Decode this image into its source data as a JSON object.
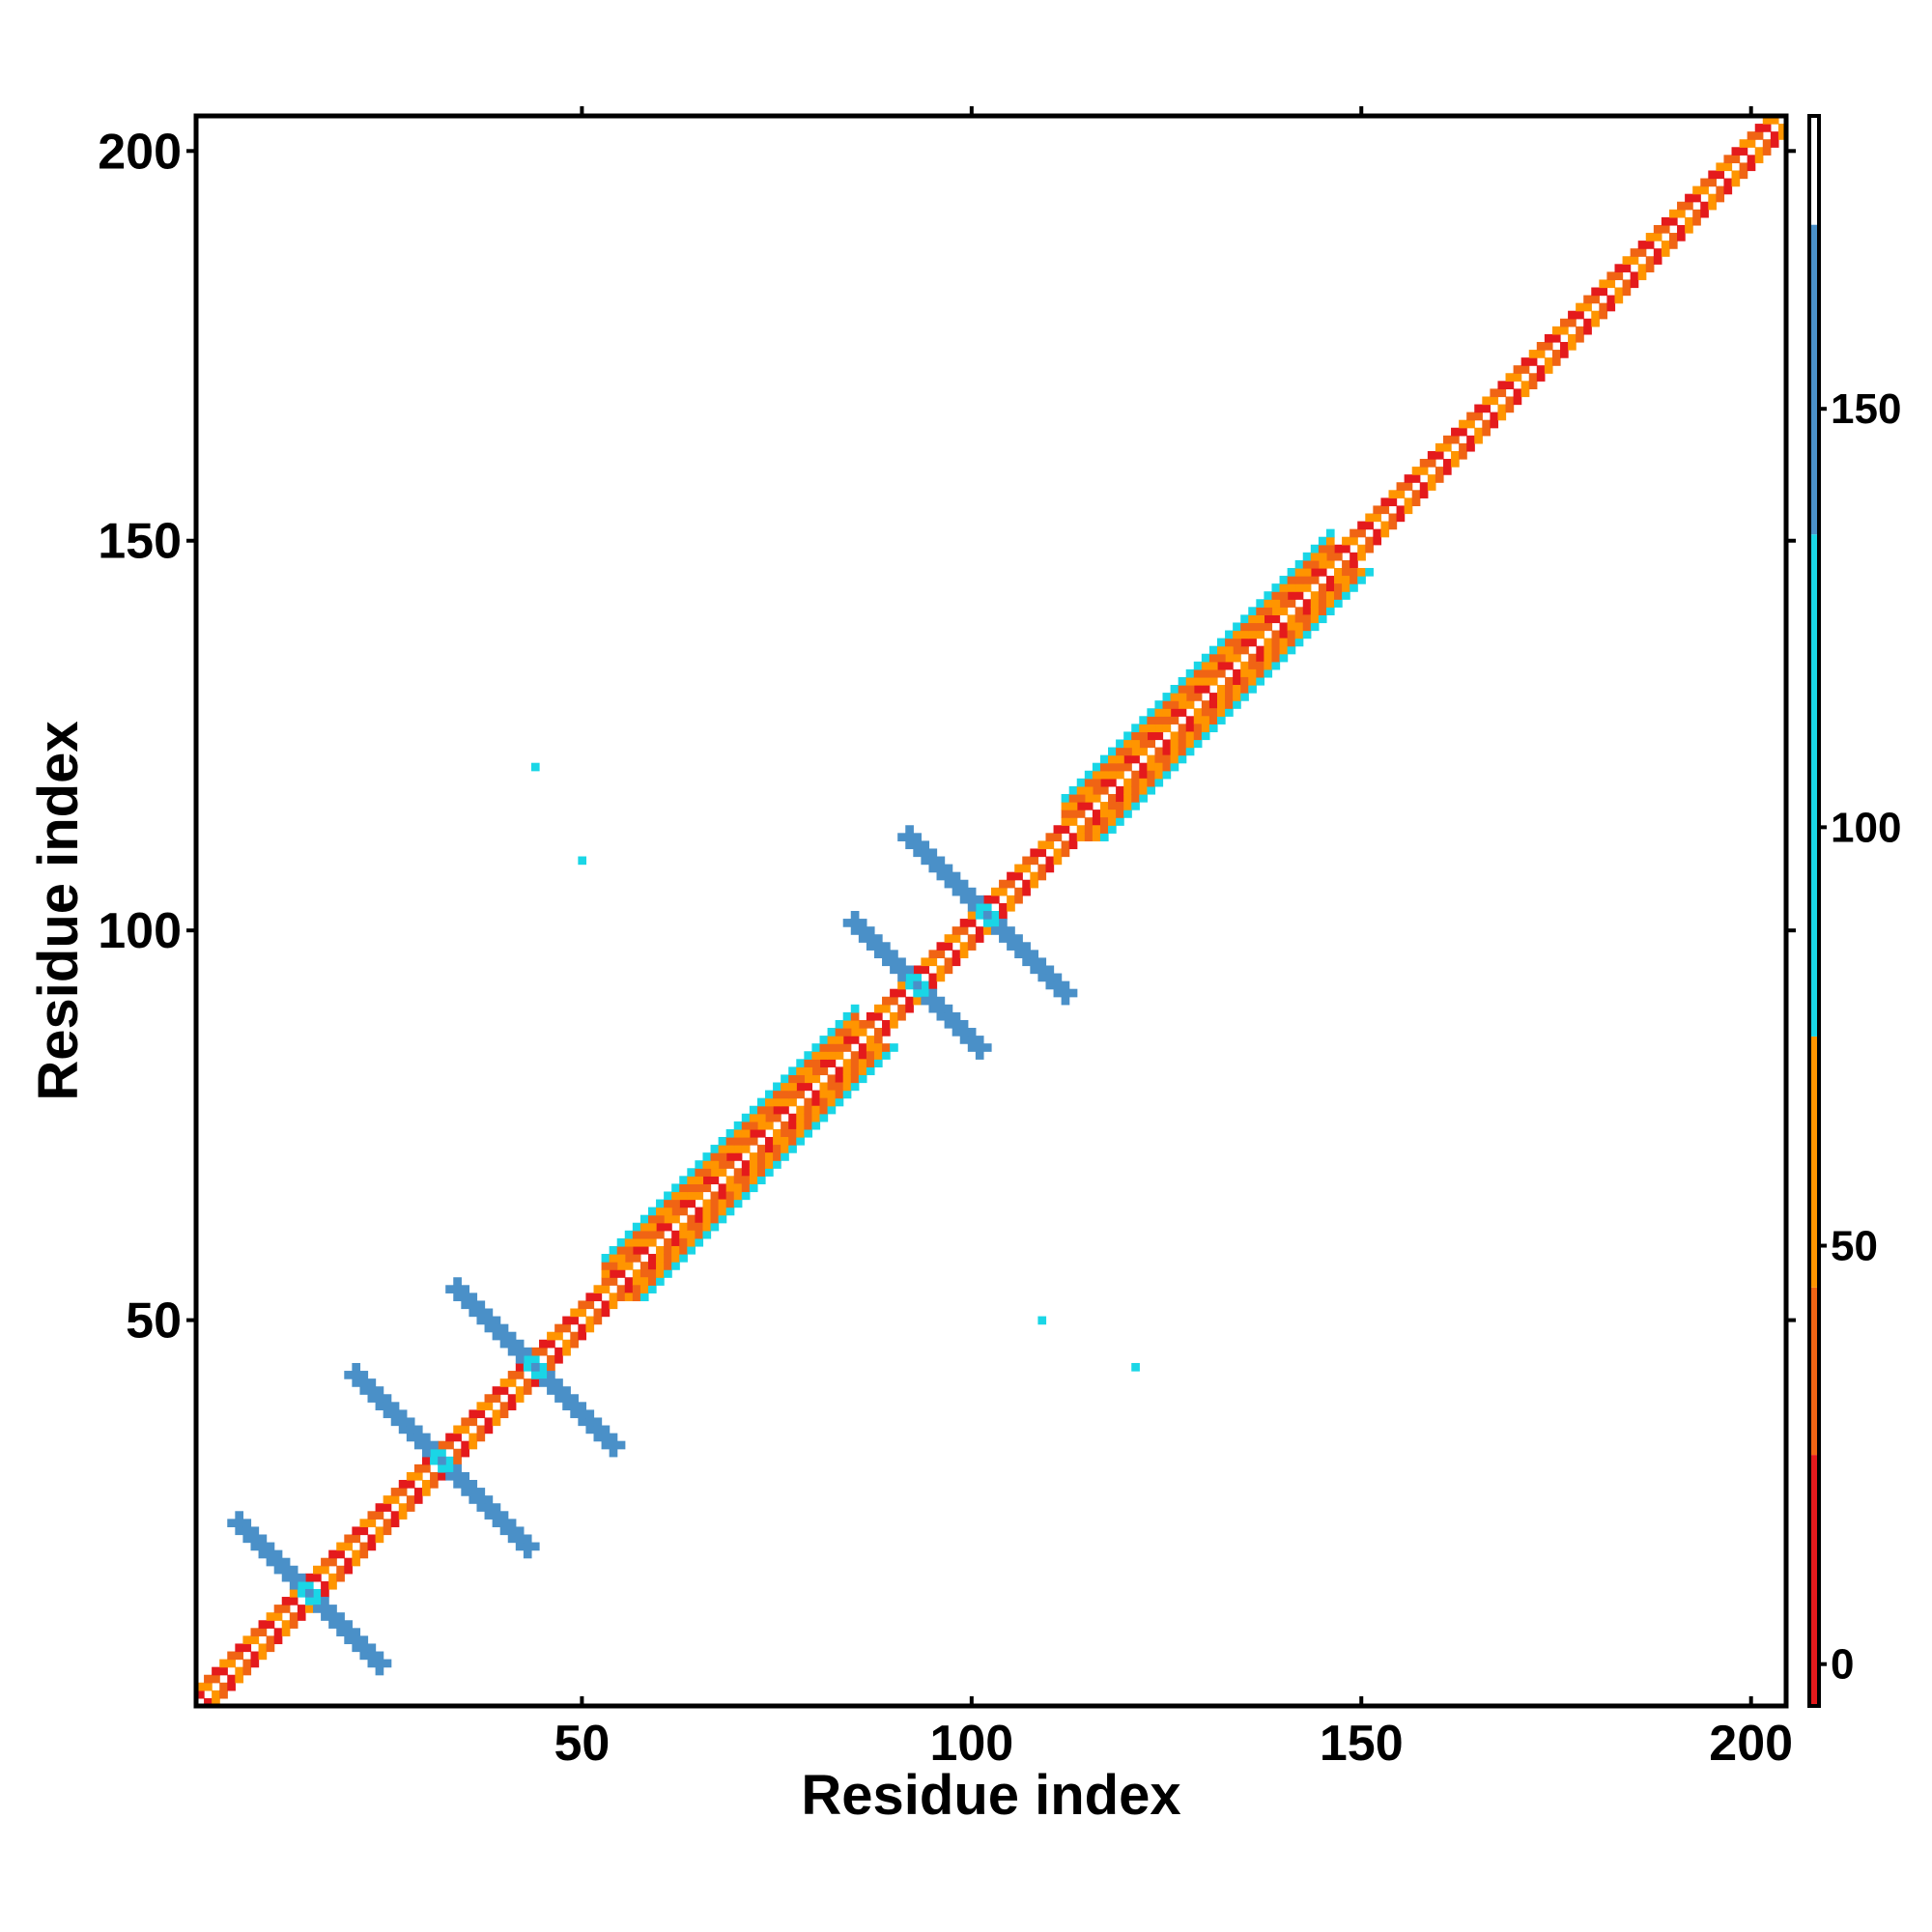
{
  "chart_data": {
    "type": "heatmap",
    "title": "",
    "xlabel": "Residue index",
    "ylabel": "Residue index",
    "xlim": [
      1,
      204
    ],
    "ylim": [
      1,
      204
    ],
    "x_ticks": [
      50,
      100,
      150,
      200
    ],
    "y_ticks": [
      50,
      100,
      150,
      200
    ],
    "x_tick_labels": [
      "50",
      "100",
      "150",
      "200"
    ],
    "y_tick_labels": [
      "50",
      "100",
      "150",
      "200"
    ],
    "colorbar": {
      "range": [
        -5,
        185
      ],
      "ticks": [
        0,
        50,
        100,
        150
      ],
      "tick_labels": [
        "0",
        "50",
        "100",
        "150"
      ],
      "bands": [
        {
          "from": -5,
          "to": 25,
          "color": "#e41a1c"
        },
        {
          "from": 25,
          "to": 45,
          "color": "#f06414"
        },
        {
          "from": 45,
          "to": 75,
          "color": "#ff9500"
        },
        {
          "from": 75,
          "to": 135,
          "color": "#1ad6e6"
        },
        {
          "from": 135,
          "to": 172,
          "color": "#4a90c8"
        },
        {
          "from": 172,
          "to": 185,
          "color": "#ffffff"
        }
      ]
    },
    "features": {
      "diagonal_band_value": 10,
      "crossings": [
        {
          "name": "cross-1",
          "center": [
            15,
            15
          ],
          "half_length": 9,
          "value": 150,
          "center_value": 100
        },
        {
          "name": "cross-2",
          "center": [
            32,
            32
          ],
          "half_length": 11,
          "value": 150,
          "center_value": 100
        },
        {
          "name": "cross-3",
          "center": [
            44,
            44
          ],
          "half_length": 10,
          "value": 150,
          "center_value": 100
        },
        {
          "name": "cross-4",
          "center": [
            93,
            93
          ],
          "half_length": 8,
          "value": 150,
          "center_value": 100
        },
        {
          "name": "cross-5",
          "center": [
            102,
            102
          ],
          "half_length": 10,
          "value": 150,
          "center_value": 100
        }
      ],
      "helix_blocks": [
        {
          "from": 53,
          "to": 67,
          "value": 100
        },
        {
          "from": 66,
          "to": 85,
          "value": 100
        },
        {
          "from": 112,
          "to": 146,
          "value": 100
        }
      ],
      "isolated_contacts": [
        {
          "x": 44,
          "y": 121,
          "value": 110
        },
        {
          "x": 50,
          "y": 109,
          "value": 110
        },
        {
          "x": 109,
          "y": 50,
          "value": 110
        },
        {
          "x": 121,
          "y": 44,
          "value": 110
        }
      ]
    }
  }
}
